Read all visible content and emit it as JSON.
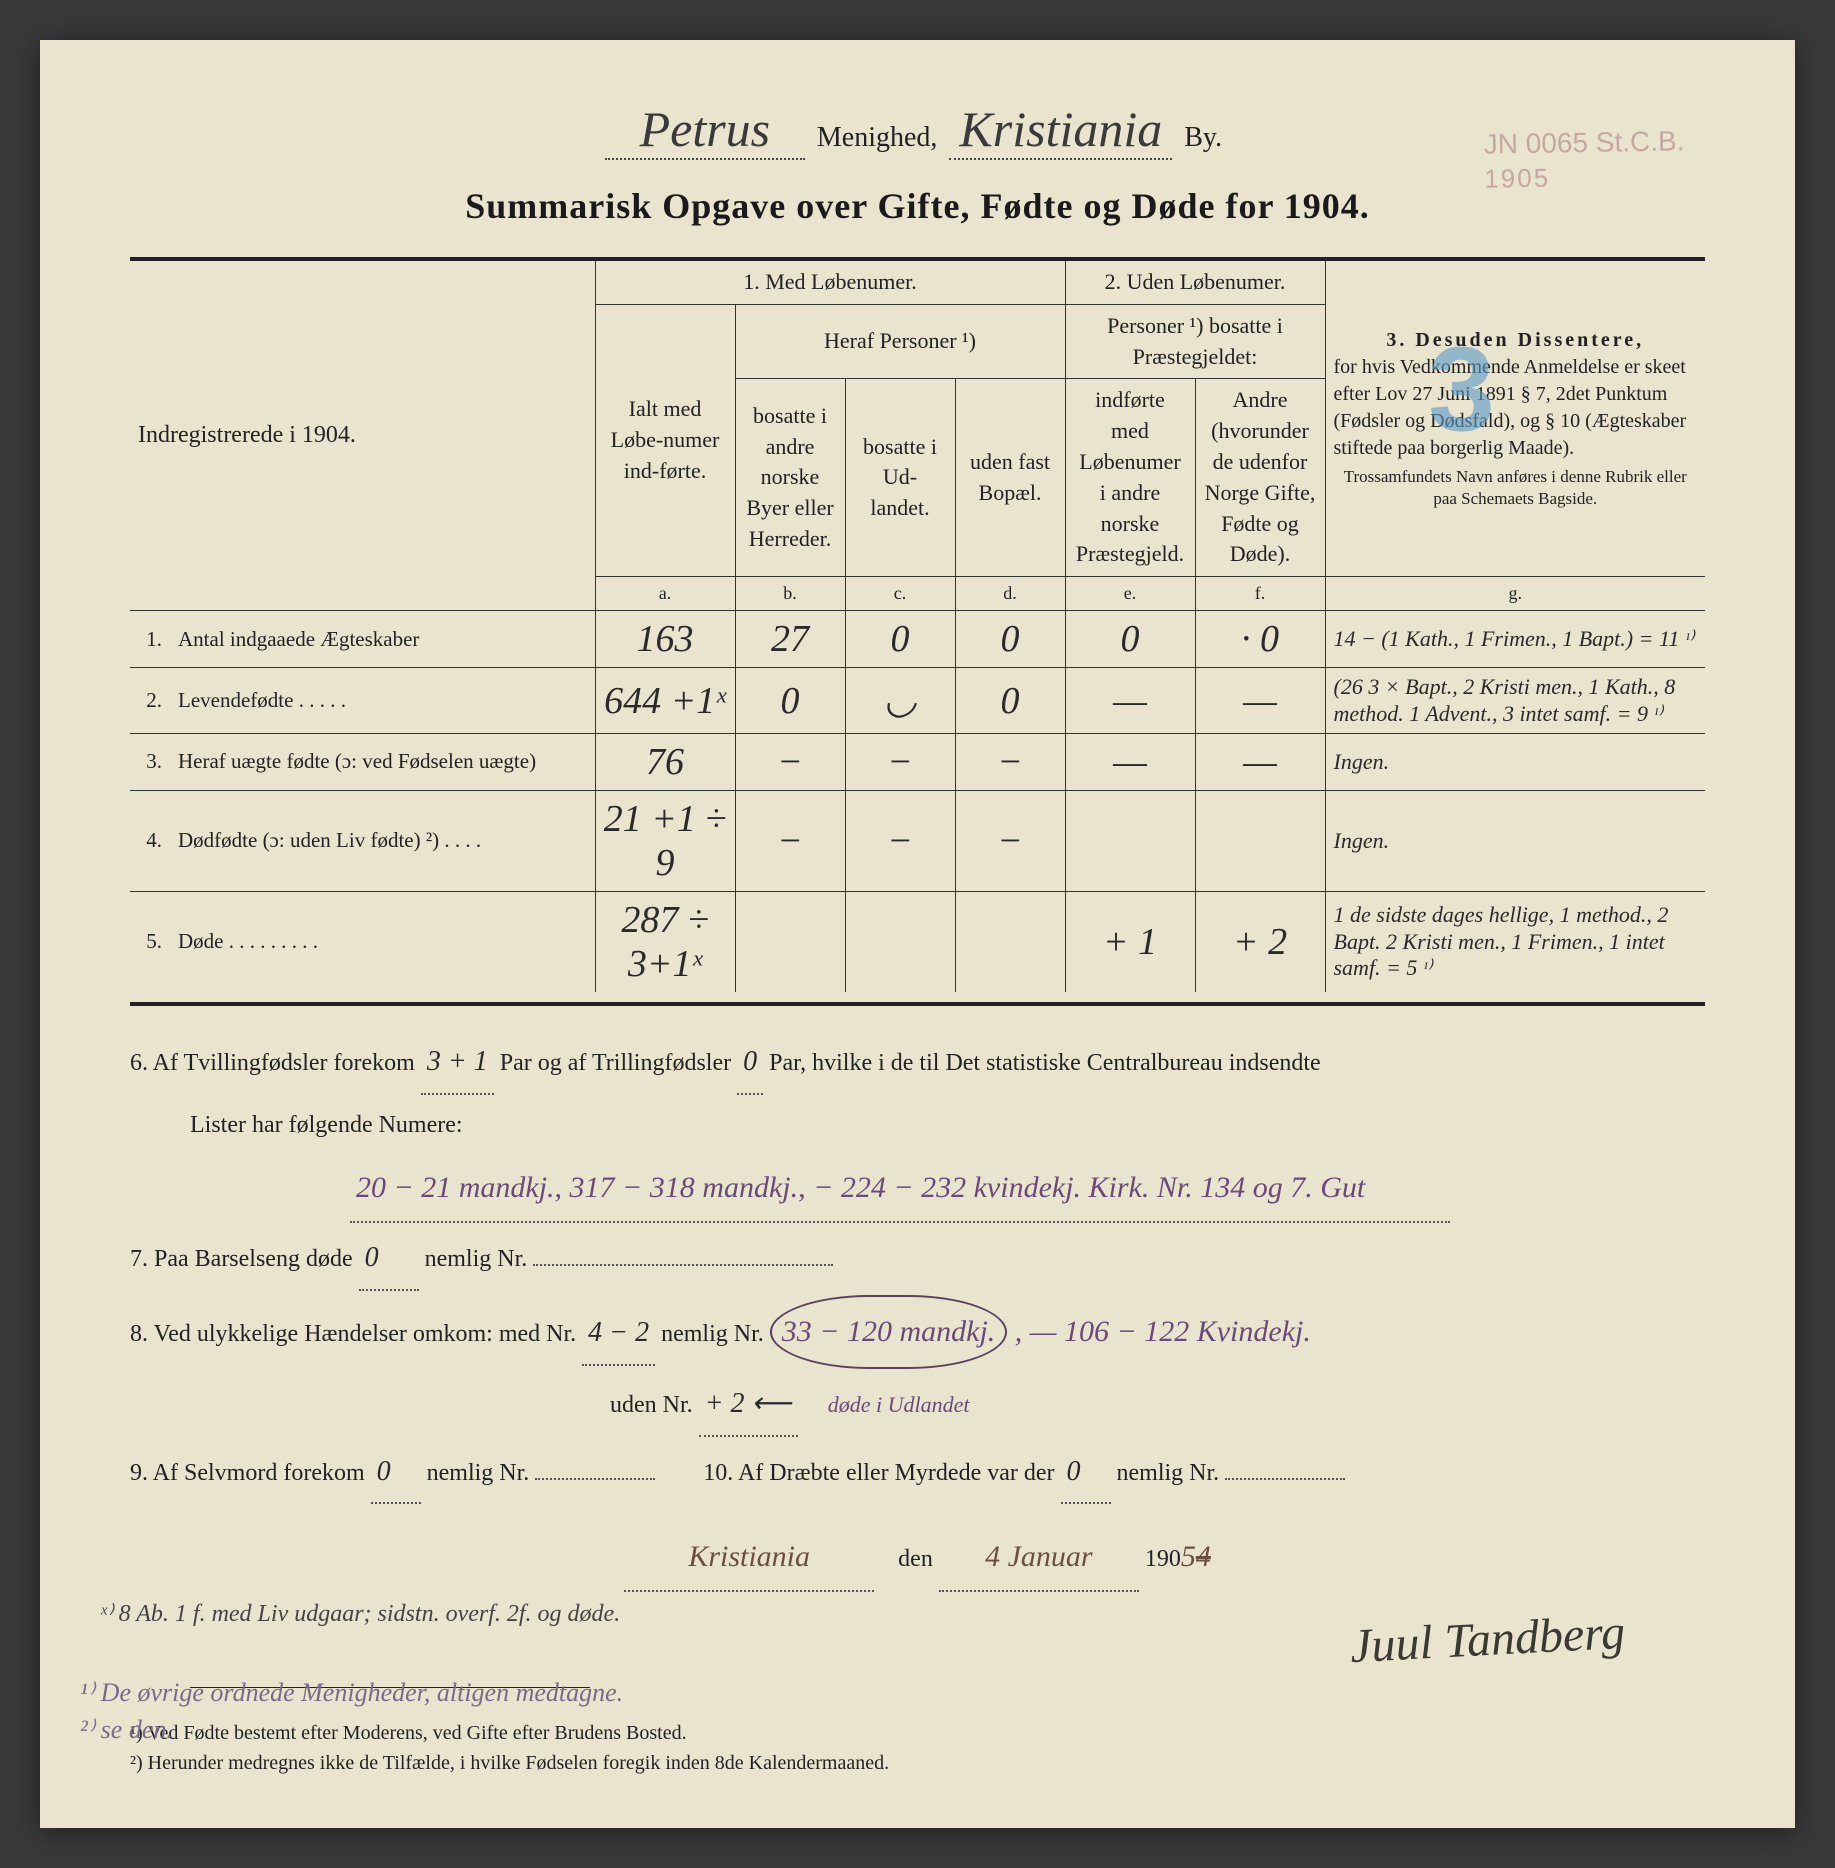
{
  "stamp": {
    "line1": "JN 0065 St.C.B.",
    "line2": "1905"
  },
  "header": {
    "parish_script": "Petrus",
    "label_menighed": "Menighed,",
    "city_script": "Kristiania",
    "label_by": "By."
  },
  "title": "Summarisk Opgave over Gifte, Fødte og Døde for 1904.",
  "pencil_mark": "3",
  "columns": {
    "indreg": "Indregistrerede i 1904.",
    "sec1": "1.  Med Løbenumer.",
    "sec2": "2.  Uden Løbenumer.",
    "sec3_title": "3.  Desuden Dissentere,",
    "sec3_body": "for hvis Vedkommende Anmeldelse er skeet efter Lov 27 Juni 1891 § 7, 2det Punktum (Fødsler og Dødsfald), og § 10 (Ægteskaber stiftede paa borgerlig Maade).",
    "sec3_small": "Trossamfundets Navn anføres i denne Rubrik eller paa Schemaets Bagside.",
    "a_label": "Ialt med Løbe-numer ind-førte.",
    "heraf": "Heraf Personer ¹)",
    "b_label": "bosatte i andre norske Byer eller Herreder.",
    "c_label": "bosatte i Ud-landet.",
    "d_label": "uden fast Bopæl.",
    "sec2_sub": "Personer ¹) bosatte i Præstegjeldet:",
    "e_label": "indførte med Løbenumer i andre norske Præstegjeld.",
    "f_label": "Andre (hvorunder de udenfor Norge Gifte, Fødte og Døde).",
    "letters": {
      "a": "a.",
      "b": "b.",
      "c": "c.",
      "d": "d.",
      "e": "e.",
      "f": "f.",
      "g": "g."
    }
  },
  "rows": [
    {
      "n": "1.",
      "label": "Antal indgaaede Ægteskaber",
      "a": "163",
      "b": "27",
      "c": "0",
      "d": "0",
      "e": "0",
      "f": "· 0",
      "g": "14 − (1 Kath., 1 Frimen., 1 Bapt.) = 11 ᶦ⁾"
    },
    {
      "n": "2.",
      "label": "Levendefødte  .  .  .  .  .",
      "a": "644 +1ˣ",
      "b": "0",
      "c": "◡",
      "d": "0",
      "e": "—",
      "f": "—",
      "g": "(26  3 × Bapt., 2 Kristi men., 1 Kath., 8 method. 1 Advent., 3 intet samf.  = 9 ᶦ⁾"
    },
    {
      "n": "3.",
      "label": "Heraf uægte fødte (ɔ: ved Fødselen uægte)",
      "a": "76",
      "b": "−",
      "c": "−",
      "d": "−",
      "e": "—",
      "f": "—",
      "g": "Ingen."
    },
    {
      "n": "4.",
      "label": "Dødfødte (ɔ: uden Liv fødte) ²)  .  .  .  .",
      "a": "21 +1 ÷ 9",
      "b": "−",
      "c": "−",
      "d": "−",
      "e": "",
      "f": "",
      "g": "Ingen."
    },
    {
      "n": "5.",
      "label": "Døde  .  .  .  .  .  .  .  .  .",
      "a": "287 ÷ 3+1ˣ",
      "b": "",
      "c": "",
      "d": "",
      "e": "+ 1",
      "f": "+ 2",
      "g": "1 de sidste dages hellige, 1 method., 2 Bapt. 2 Kristi men., 1 Frimen., 1 intet samf.  = 5 ᶦ⁾"
    }
  ],
  "lower": {
    "l6a": "6.   Af Tvillingfødsler forekom",
    "l6_twin": "3 + 1",
    "l6b": "Par og af Trillingfødsler",
    "l6_trip": "0",
    "l6c": "Par, hvilke i de til Det statistiske Centralbureau indsendte",
    "l6d": "Lister har følgende Numere:",
    "l6_nums": "20 − 21 mandkj.,  317 − 318 mandkj.,  − 224 − 232 kvindekj.   Kirk. Nr. 134 og 7. Gut",
    "l7a": "7.   Paa Barselseng døde",
    "l7_v": "0",
    "l7b": "nemlig Nr.",
    "l8a": "8.   Ved ulykkelige Hændelser omkom:  med Nr.",
    "l8_v1": "4 − 2",
    "l8b": "nemlig Nr.",
    "l8_circ": "33 − 120 mandkj.",
    "l8_sub": "døde i Udlandet",
    "l8_after": ",  — 106 − 122 Kvindekj.",
    "l8_uden": "uden Nr.",
    "l8_uden_v": "+ 2  ⟵",
    "l9a": "9.   Af Selvmord forekom",
    "l9_v": "0",
    "l9b": "nemlig Nr.",
    "l10a": "10.   Af Dræbte eller Myrdede var der",
    "l10_v": "0",
    "l10b": "nemlig Nr.",
    "date_place": "Kristiania",
    "date_mid": "den",
    "date_day": "4 Januar",
    "date_year_pre": "190",
    "date_year_hand": "5",
    "date_year_strike": "4"
  },
  "margin_mid": "ˣ⁾ 8 Ab. 1 f. med Liv udgaar; sidstn. overf. 2f. og døde.",
  "signature": "Juul Tandberg",
  "footnotes": {
    "f1": "¹) Ved Fødte bestemt efter Moderens, ved Gifte efter Brudens Bosted.",
    "f2": "²) Herunder medregnes ikke de Tilfælde, i hvilke Fødselen foregik inden 8de Kalendermaaned."
  },
  "margin_left": {
    "l1": "¹⁾ De øvrige ordnede Menigheder, altigen medtagne.",
    "l2": "²⁾ se den."
  }
}
